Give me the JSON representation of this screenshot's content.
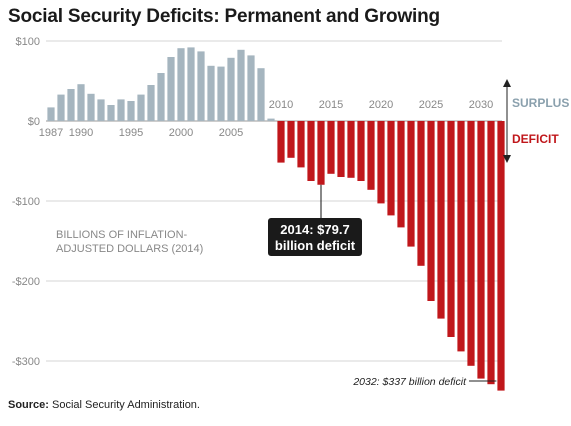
{
  "chart_data": {
    "type": "bar",
    "title": "Social Security Deficits: Permanent and Growing",
    "units_label": [
      "BILLIONS OF INFLATION-",
      "ADJUSTED DOLLARS (2014)"
    ],
    "x": [
      1987,
      1988,
      1989,
      1990,
      1991,
      1992,
      1993,
      1994,
      1995,
      1996,
      1997,
      1998,
      1999,
      2000,
      2001,
      2002,
      2003,
      2004,
      2005,
      2006,
      2007,
      2008,
      2009,
      2010,
      2011,
      2012,
      2013,
      2014,
      2015,
      2016,
      2017,
      2018,
      2019,
      2020,
      2021,
      2022,
      2023,
      2024,
      2025,
      2026,
      2027,
      2028,
      2029,
      2030,
      2031,
      2032
    ],
    "values": [
      17,
      33,
      40,
      46,
      34,
      27,
      20,
      27,
      25,
      33,
      45,
      60,
      80,
      91,
      92,
      87,
      69,
      68,
      79,
      89,
      82,
      66,
      3,
      -52,
      -46,
      -58,
      -75,
      -79.7,
      -66,
      -70,
      -71,
      -75,
      -86,
      -103,
      -118,
      -133,
      -157,
      -181,
      -225,
      -247,
      -270,
      -288,
      -306,
      -322,
      -329,
      -337
    ],
    "ylim": [
      -337,
      100
    ],
    "y_ticks": [
      100,
      0,
      -100,
      -200,
      -300
    ],
    "y_tick_labels": [
      "$100",
      "$0",
      "-$100",
      "-$200",
      "-$300"
    ],
    "x_tick_labels_surplus": [
      "1987",
      "1990",
      "1995",
      "2000",
      "2005"
    ],
    "x_tick_labels_deficit": [
      "2010",
      "2015",
      "2020",
      "2025",
      "2030"
    ],
    "grid": true,
    "colors": {
      "surplus": "#a5b5bf",
      "deficit": "#c0171b",
      "callout_bg": "#1a1a1a"
    },
    "annotations": {
      "surplus_label": "SURPLUS",
      "deficit_label": "DEFICIT",
      "callout_2014": [
        "2014: $79.7",
        "billion deficit"
      ],
      "note_2032": "2032: $337 billion deficit"
    }
  },
  "footer": {
    "source_label": "Source:",
    "source_text": "Social Security Administration."
  }
}
